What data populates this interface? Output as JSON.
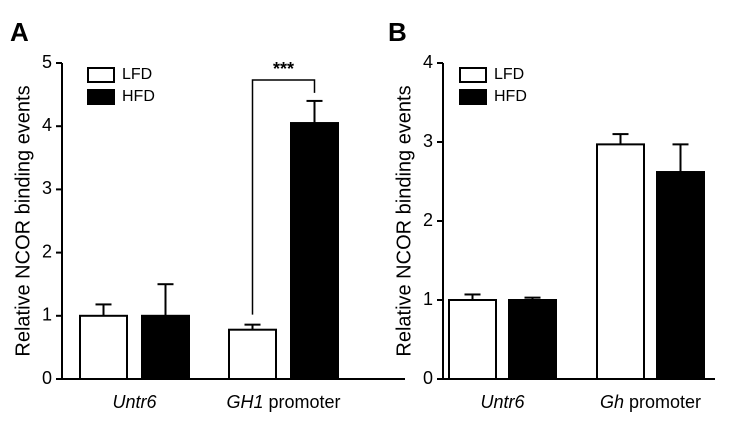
{
  "chart_data": [
    {
      "type": "bar",
      "panel": "A",
      "ylabel": "Relative NCOR binding events",
      "categories": [
        "Untr6",
        "GH1 promoter"
      ],
      "series": [
        {
          "name": "LFD",
          "color": "#ffffff",
          "values": [
            1.0,
            0.78
          ],
          "errors": [
            0.18,
            0.08
          ]
        },
        {
          "name": "HFD",
          "color": "#000000",
          "values": [
            1.0,
            4.05
          ],
          "errors": [
            0.5,
            0.35
          ]
        }
      ],
      "ylim": [
        0,
        5
      ],
      "yticks": [
        0,
        1,
        2,
        3,
        4,
        5
      ],
      "annotation": "***"
    },
    {
      "type": "bar",
      "panel": "B",
      "ylabel": "Relative NCOR binding events",
      "categories": [
        "Untr6",
        "Gh promoter"
      ],
      "series": [
        {
          "name": "LFD",
          "color": "#ffffff",
          "values": [
            1.0,
            2.97
          ],
          "errors": [
            0.07,
            0.13
          ]
        },
        {
          "name": "HFD",
          "color": "#000000",
          "values": [
            1.0,
            2.62
          ],
          "errors": [
            0.03,
            0.35
          ]
        }
      ],
      "ylim": [
        0,
        4
      ],
      "yticks": [
        0,
        1,
        2,
        3,
        4
      ]
    }
  ]
}
